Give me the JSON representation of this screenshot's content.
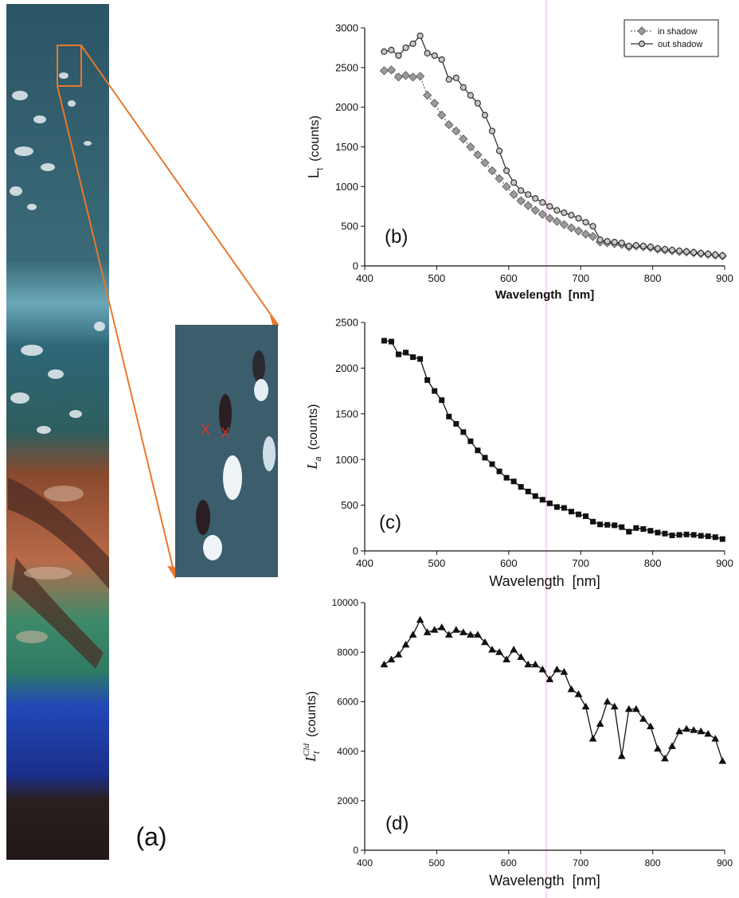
{
  "figure_label": "(a)",
  "inset_marks": [
    "X",
    "X"
  ],
  "chart_data": [
    {
      "type": "line",
      "panel_label": "(b)",
      "xlabel": "Wavelength  [nm]",
      "ylabel": {
        "text": "L",
        "sub": "t",
        "unit": "(counts)"
      },
      "x": [
        427,
        437,
        447,
        457,
        467,
        477,
        487,
        497,
        507,
        517,
        527,
        537,
        547,
        557,
        567,
        577,
        587,
        597,
        607,
        617,
        627,
        637,
        647,
        657,
        667,
        677,
        687,
        697,
        707,
        717,
        727,
        737,
        747,
        757,
        767,
        777,
        787,
        797,
        807,
        817,
        827,
        837,
        847,
        857,
        867,
        877,
        887,
        897
      ],
      "series": [
        {
          "name": "in shadow",
          "color": "#666666",
          "marker": "diamond",
          "dash": "dotted",
          "values": [
            2460,
            2470,
            2380,
            2400,
            2380,
            2390,
            2150,
            2050,
            1900,
            1780,
            1700,
            1600,
            1500,
            1400,
            1300,
            1200,
            1100,
            1000,
            900,
            820,
            760,
            700,
            650,
            600,
            560,
            520,
            480,
            440,
            400,
            370,
            300,
            290,
            280,
            270,
            240,
            250,
            240,
            230,
            210,
            200,
            190,
            180,
            175,
            165,
            155,
            145,
            135,
            125
          ]
        },
        {
          "name": "out shadow",
          "color": "#333333",
          "marker": "circle",
          "dash": "solid",
          "values": [
            2700,
            2720,
            2650,
            2750,
            2800,
            2900,
            2680,
            2650,
            2600,
            2350,
            2370,
            2250,
            2150,
            2050,
            1900,
            1700,
            1450,
            1200,
            1050,
            950,
            900,
            850,
            800,
            750,
            700,
            670,
            640,
            600,
            550,
            500,
            330,
            310,
            300,
            290,
            250,
            260,
            250,
            240,
            220,
            210,
            200,
            190,
            180,
            170,
            160,
            150,
            140,
            130
          ]
        }
      ],
      "xlim": [
        400,
        900
      ],
      "ylim": [
        0,
        3000
      ],
      "xticks": [
        400,
        500,
        600,
        700,
        800,
        900
      ],
      "yticks": [
        0,
        500,
        1000,
        1500,
        2000,
        2500,
        3000
      ],
      "legend": "upper right"
    },
    {
      "type": "line",
      "panel_label": "(c)",
      "xlabel": "Wavelength  [nm]",
      "ylabel": {
        "text": "L",
        "sub": "a",
        "unit": "(counts)"
      },
      "x": [
        427,
        437,
        447,
        457,
        467,
        477,
        487,
        497,
        507,
        517,
        527,
        537,
        547,
        557,
        567,
        577,
        587,
        597,
        607,
        617,
        627,
        637,
        647,
        657,
        667,
        677,
        687,
        697,
        707,
        717,
        727,
        737,
        747,
        757,
        767,
        777,
        787,
        797,
        807,
        817,
        827,
        837,
        847,
        857,
        867,
        877,
        887,
        897
      ],
      "series": [
        {
          "color": "#111111",
          "marker": "square",
          "dash": "solid",
          "values": [
            2300,
            2290,
            2150,
            2170,
            2120,
            2100,
            1870,
            1750,
            1650,
            1470,
            1390,
            1300,
            1200,
            1100,
            1020,
            950,
            870,
            800,
            760,
            700,
            650,
            600,
            560,
            520,
            480,
            470,
            430,
            400,
            380,
            320,
            290,
            285,
            280,
            260,
            210,
            250,
            240,
            220,
            200,
            190,
            170,
            175,
            180,
            175,
            165,
            160,
            150,
            130
          ]
        }
      ],
      "xlim": [
        400,
        900
      ],
      "ylim": [
        0,
        2500
      ],
      "xticks": [
        400,
        500,
        600,
        700,
        800,
        900
      ],
      "yticks": [
        0,
        500,
        1000,
        1500,
        2000,
        2500
      ]
    },
    {
      "type": "line",
      "panel_label": "(d)",
      "xlabel": "Wavelength  [nm]",
      "ylabel": {
        "text": "L",
        "sub": "t",
        "sup": "Cld",
        "unit": "(counts)"
      },
      "x": [
        427,
        437,
        447,
        457,
        467,
        477,
        487,
        497,
        507,
        517,
        527,
        537,
        547,
        557,
        567,
        577,
        587,
        597,
        607,
        617,
        627,
        637,
        647,
        657,
        667,
        677,
        687,
        697,
        707,
        717,
        727,
        737,
        747,
        757,
        767,
        777,
        787,
        797,
        807,
        817,
        827,
        837,
        847,
        857,
        867,
        877,
        887,
        897
      ],
      "series": [
        {
          "color": "#111111",
          "marker": "triangle",
          "dash": "solid",
          "values": [
            7500,
            7700,
            7900,
            8300,
            8700,
            9300,
            8800,
            8900,
            9000,
            8700,
            8900,
            8800,
            8700,
            8700,
            8400,
            8100,
            8000,
            7700,
            8100,
            7800,
            7500,
            7500,
            7300,
            6900,
            7300,
            7200,
            6500,
            6300,
            5800,
            4500,
            5100,
            6000,
            5800,
            3800,
            5700,
            5700,
            5300,
            5000,
            4100,
            3700,
            4200,
            4800,
            4900,
            4850,
            4800,
            4700,
            4500,
            3600
          ]
        }
      ],
      "xlim": [
        400,
        900
      ],
      "ylim": [
        0,
        10000
      ],
      "xticks": [
        400,
        500,
        600,
        700,
        800,
        900
      ],
      "yticks": [
        0,
        2000,
        4000,
        6000,
        8000,
        10000
      ]
    }
  ]
}
